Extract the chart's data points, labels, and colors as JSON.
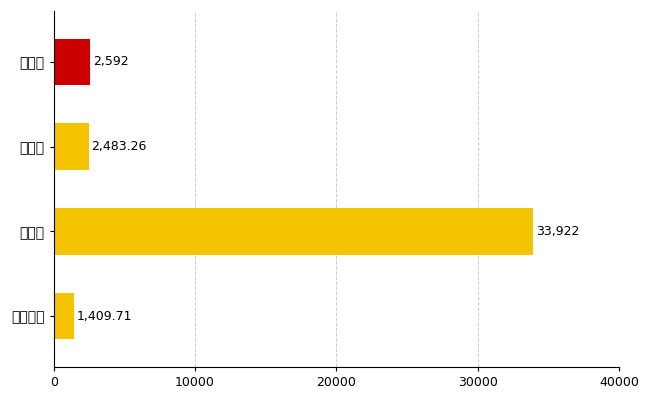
{
  "categories": [
    "半田市",
    "県平均",
    "県最大",
    "全国平均"
  ],
  "values": [
    2592,
    2483.26,
    33922,
    1409.71
  ],
  "bar_colors": [
    "#cc0000",
    "#f5c400",
    "#f5c400",
    "#f5c400"
  ],
  "labels": [
    "2,592",
    "2,483.26",
    "33,922",
    "1,409.71"
  ],
  "xlim": [
    0,
    40000
  ],
  "xticks": [
    0,
    10000,
    20000,
    30000,
    40000
  ],
  "xtick_labels": [
    "0",
    "10000",
    "20000",
    "30000",
    "40000"
  ],
  "background_color": "#ffffff",
  "grid_color": "#cccccc",
  "bar_height": 0.55,
  "label_fontsize": 9,
  "tick_fontsize": 9,
  "ytick_fontsize": 10
}
